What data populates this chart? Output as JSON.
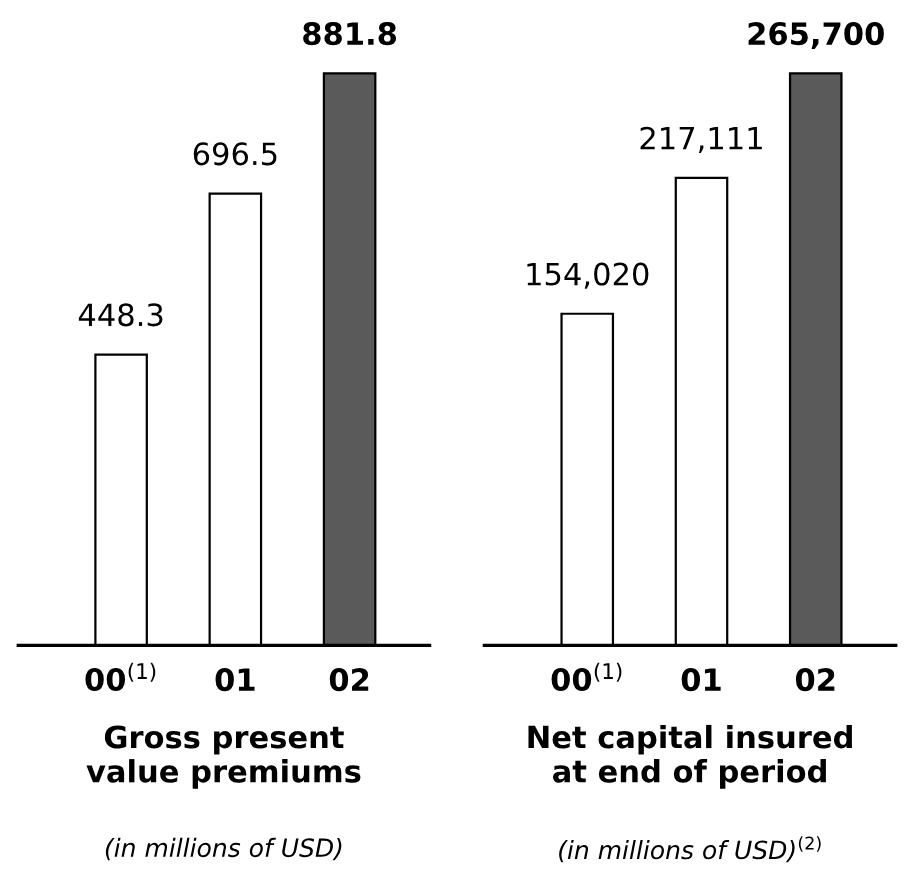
{
  "chart_data": [
    {
      "type": "bar",
      "categories": [
        "00$^{(1)}$",
        "01",
        "02"
      ],
      "values": [
        448.3,
        696.5,
        881.8
      ],
      "value_labels": [
        "448.3",
        "696.5",
        "881.8"
      ],
      "colors": [
        "#ffffff",
        "#ffffff",
        "#5a5a5a"
      ],
      "xlabel": "Gross present\nvalue premiums",
      "annotations": [
        "(in millions of USD)"
      ],
      "tick_labels": "x",
      "grid": false,
      "legend": false
    },
    {
      "type": "bar",
      "categories": [
        "00$^{(1)}$",
        "01",
        "02"
      ],
      "values": [
        154020,
        217111,
        265700
      ],
      "value_labels": [
        "154,020",
        "217,111",
        "265,700"
      ],
      "colors": [
        "#ffffff",
        "#ffffff",
        "#5a5a5a"
      ],
      "xlabel": "Net capital insured\nat end of period",
      "annotations": [
        "(in millions of USD)$^{(2)}$"
      ],
      "tick_labels": "x",
      "grid": false,
      "legend": false
    }
  ]
}
